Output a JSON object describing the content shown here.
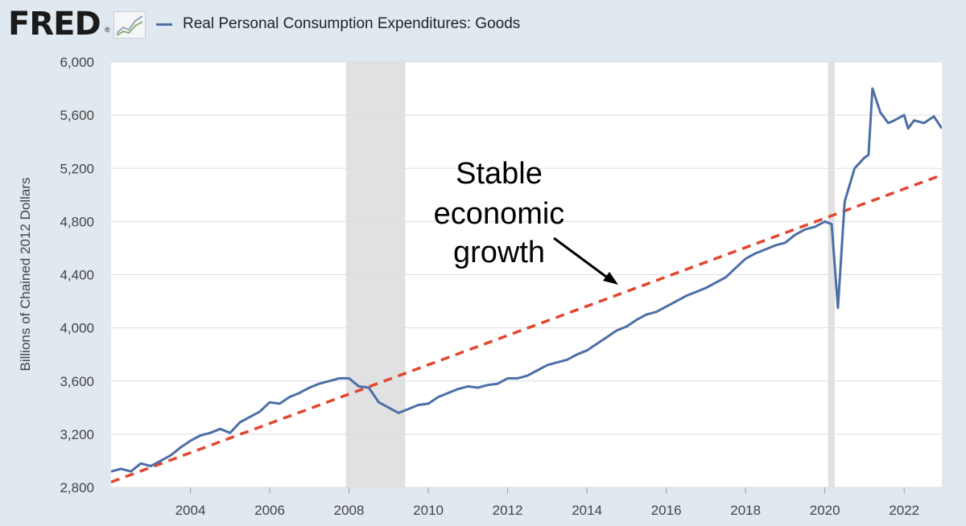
{
  "header": {
    "logo_text": "FRED",
    "logo_registered": "®",
    "logo_icon": "line-chart-icon",
    "legend_label": "Real Personal Consumption Expenditures: Goods"
  },
  "colors": {
    "background": "#e1e9f0",
    "plot_background": "#ffffff",
    "series_line": "#4c6fa5",
    "trend_line": "#e2472f",
    "recession_shading": "#e1e1e1",
    "arrow": "#000000"
  },
  "annotation": {
    "lines": [
      "Stable",
      "economic",
      "growth"
    ]
  },
  "chart_data": {
    "type": "line",
    "title": "Real Personal Consumption Expenditures: Goods",
    "ylabel": "Billions of Chained 2012 Dollars",
    "xlabel": "",
    "xlim": [
      2002.0,
      2022.95
    ],
    "ylim": [
      2800,
      6000
    ],
    "yticks": [
      2800,
      3200,
      3600,
      4000,
      4400,
      4800,
      5200,
      5600,
      6000
    ],
    "ytick_labels": [
      "2,800",
      "3,200",
      "3,600",
      "4,000",
      "4,400",
      "4,800",
      "5,200",
      "5,600",
      "6,000"
    ],
    "xticks": [
      2004,
      2006,
      2008,
      2010,
      2012,
      2014,
      2016,
      2018,
      2020,
      2022
    ],
    "xtick_labels": [
      "2004",
      "2006",
      "2008",
      "2010",
      "2012",
      "2014",
      "2016",
      "2018",
      "2020",
      "2022"
    ],
    "grid": "horizontal",
    "recessions": [
      [
        2007.92,
        2009.42
      ],
      [
        2020.08,
        2020.25
      ]
    ],
    "series": [
      {
        "name": "Real Personal Consumption Expenditures: Goods",
        "points": [
          [
            2002.0,
            2920
          ],
          [
            2002.25,
            2940
          ],
          [
            2002.5,
            2920
          ],
          [
            2002.75,
            2980
          ],
          [
            2003.0,
            2960
          ],
          [
            2003.25,
            3000
          ],
          [
            2003.5,
            3040
          ],
          [
            2003.75,
            3100
          ],
          [
            2004.0,
            3150
          ],
          [
            2004.25,
            3190
          ],
          [
            2004.5,
            3210
          ],
          [
            2004.75,
            3240
          ],
          [
            2005.0,
            3210
          ],
          [
            2005.25,
            3290
          ],
          [
            2005.5,
            3330
          ],
          [
            2005.75,
            3370
          ],
          [
            2006.0,
            3440
          ],
          [
            2006.25,
            3430
          ],
          [
            2006.5,
            3480
          ],
          [
            2006.75,
            3510
          ],
          [
            2007.0,
            3550
          ],
          [
            2007.25,
            3580
          ],
          [
            2007.5,
            3600
          ],
          [
            2007.75,
            3620
          ],
          [
            2008.0,
            3620
          ],
          [
            2008.25,
            3560
          ],
          [
            2008.5,
            3550
          ],
          [
            2008.75,
            3440
          ],
          [
            2009.0,
            3400
          ],
          [
            2009.25,
            3360
          ],
          [
            2009.5,
            3390
          ],
          [
            2009.75,
            3420
          ],
          [
            2010.0,
            3430
          ],
          [
            2010.25,
            3480
          ],
          [
            2010.5,
            3510
          ],
          [
            2010.75,
            3540
          ],
          [
            2011.0,
            3560
          ],
          [
            2011.25,
            3550
          ],
          [
            2011.5,
            3570
          ],
          [
            2011.75,
            3580
          ],
          [
            2012.0,
            3620
          ],
          [
            2012.25,
            3620
          ],
          [
            2012.5,
            3640
          ],
          [
            2012.75,
            3680
          ],
          [
            2013.0,
            3720
          ],
          [
            2013.25,
            3740
          ],
          [
            2013.5,
            3760
          ],
          [
            2013.75,
            3800
          ],
          [
            2014.0,
            3830
          ],
          [
            2014.25,
            3880
          ],
          [
            2014.5,
            3930
          ],
          [
            2014.75,
            3980
          ],
          [
            2015.0,
            4010
          ],
          [
            2015.25,
            4060
          ],
          [
            2015.5,
            4100
          ],
          [
            2015.75,
            4120
          ],
          [
            2016.0,
            4160
          ],
          [
            2016.25,
            4200
          ],
          [
            2016.5,
            4240
          ],
          [
            2016.75,
            4270
          ],
          [
            2017.0,
            4300
          ],
          [
            2017.25,
            4340
          ],
          [
            2017.5,
            4380
          ],
          [
            2017.75,
            4450
          ],
          [
            2018.0,
            4520
          ],
          [
            2018.25,
            4560
          ],
          [
            2018.5,
            4590
          ],
          [
            2018.75,
            4620
          ],
          [
            2019.0,
            4640
          ],
          [
            2019.25,
            4700
          ],
          [
            2019.5,
            4740
          ],
          [
            2019.75,
            4760
          ],
          [
            2020.0,
            4800
          ],
          [
            2020.17,
            4780
          ],
          [
            2020.33,
            4150
          ],
          [
            2020.5,
            4950
          ],
          [
            2020.75,
            5200
          ],
          [
            2021.0,
            5280
          ],
          [
            2021.1,
            5300
          ],
          [
            2021.2,
            5800
          ],
          [
            2021.4,
            5620
          ],
          [
            2021.6,
            5540
          ],
          [
            2021.75,
            5560
          ],
          [
            2022.0,
            5600
          ],
          [
            2022.1,
            5500
          ],
          [
            2022.25,
            5560
          ],
          [
            2022.5,
            5540
          ],
          [
            2022.75,
            5590
          ],
          [
            2022.95,
            5500
          ]
        ]
      },
      {
        "name": "Stable economic growth",
        "points": [
          [
            2002.0,
            2840
          ],
          [
            2022.95,
            5150
          ]
        ]
      }
    ]
  }
}
